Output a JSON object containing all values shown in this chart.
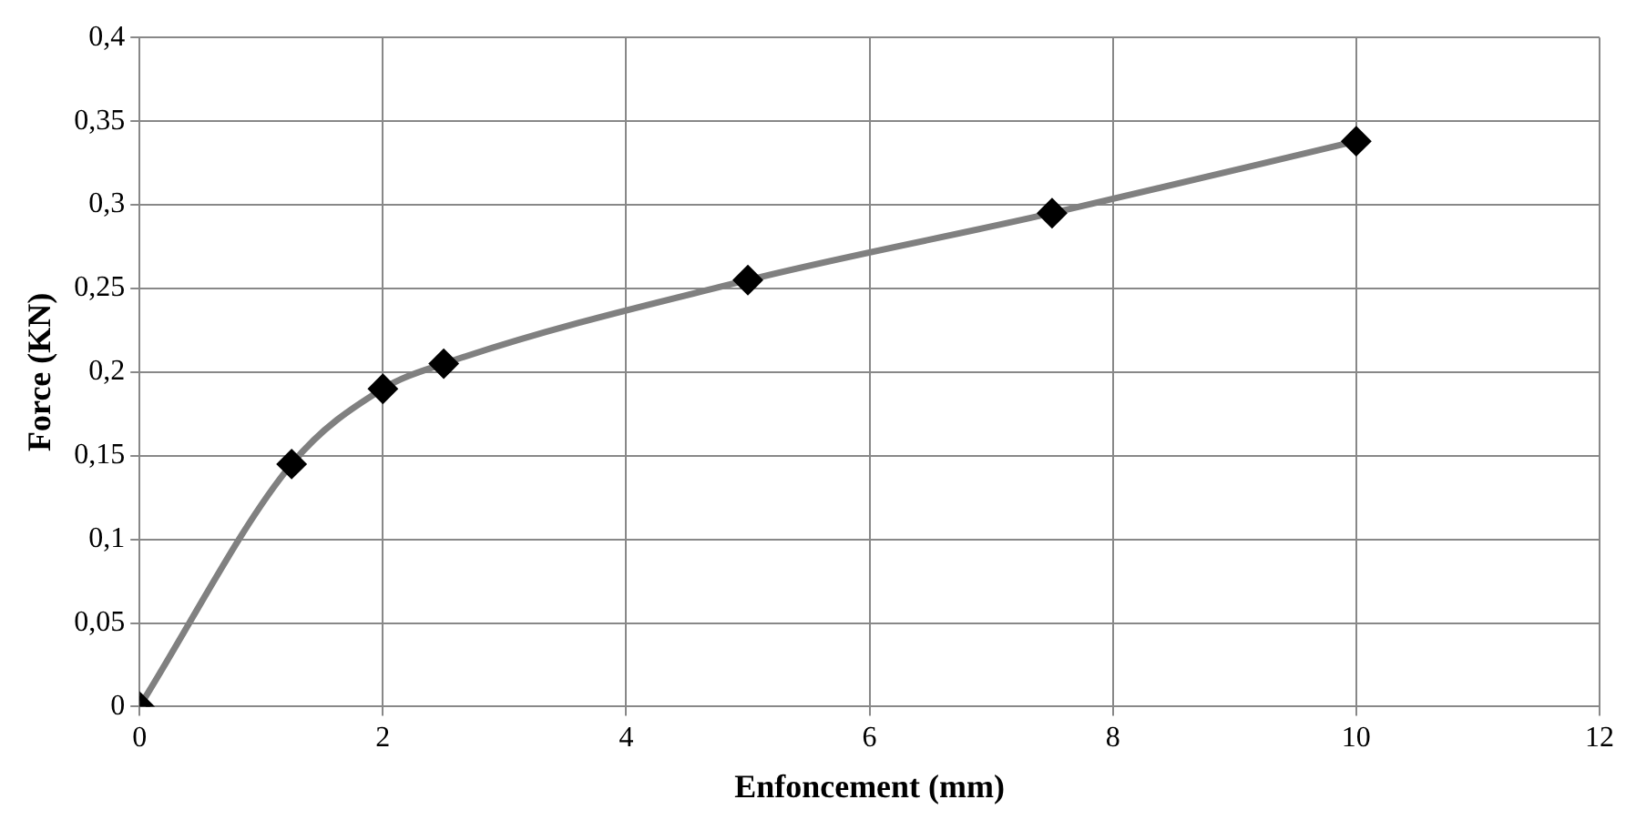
{
  "chart_data": {
    "type": "line",
    "xlabel": "Enfoncement (mm)",
    "ylabel": "Force (KN)",
    "series": [
      {
        "color": "#808080",
        "x": [
          0,
          1.25,
          2,
          2.5,
          5,
          7.5,
          10
        ],
        "values": [
          0,
          0.145,
          0.19,
          0.205,
          0.255,
          0.295,
          0.338
        ]
      }
    ],
    "xlim": [
      0,
      12
    ],
    "xticks": [
      0,
      2,
      4,
      6,
      8,
      10,
      12
    ],
    "ylim": [
      0,
      0.4
    ],
    "yticks": [
      0,
      {
        "value": 0.05,
        "label": "0,05"
      },
      {
        "value": 0.1,
        "label": "0,1"
      },
      {
        "value": 0.15,
        "label": "0,15"
      },
      {
        "value": 0.2,
        "label": "0,2"
      },
      {
        "value": 0.25,
        "label": "0,25"
      },
      {
        "value": 0.3,
        "label": "0,3"
      },
      {
        "value": 0.35,
        "label": "0,35"
      },
      {
        "value": 0.4,
        "label": "0,4"
      }
    ],
    "grid": true,
    "legend": false,
    "marker": "diamond",
    "line_style": "solid"
  }
}
